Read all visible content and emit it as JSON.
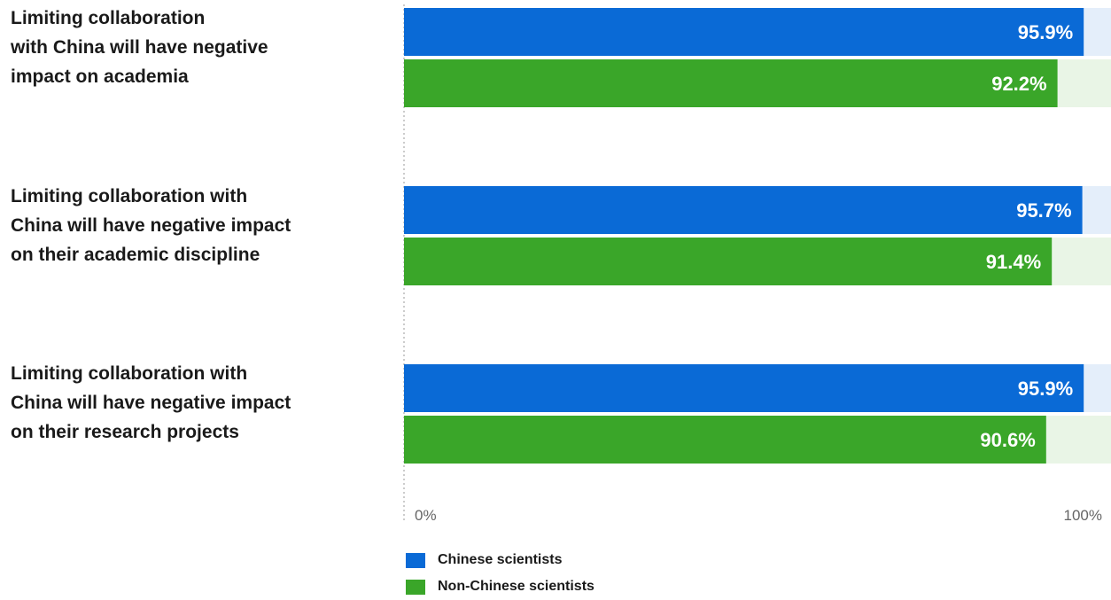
{
  "chart_data": {
    "type": "bar",
    "orientation": "horizontal",
    "categories": [
      "Limiting collaboration with China will have negative impact on academia",
      "Limiting collaboration with China will have negative impact on their academic discipline",
      "Limiting collaboration with China will have negative impact on their research projects"
    ],
    "category_lines": [
      [
        "Limiting collaboration",
        "with China will have negative",
        "impact on academia"
      ],
      [
        "Limiting collaboration with",
        "China will have negative impact",
        "on their academic discipline"
      ],
      [
        "Limiting collaboration with",
        "China will have negative impact",
        "on their research projects"
      ]
    ],
    "series": [
      {
        "name": "Chinese scientists",
        "values": [
          95.9,
          95.7,
          95.9
        ],
        "labels": [
          "95.9%",
          "95.7%",
          "95.9%"
        ],
        "color": "#0a6ad6",
        "track_color": "#e4eefa"
      },
      {
        "name": "Non-Chinese scientists",
        "values": [
          92.2,
          91.4,
          90.6
        ],
        "labels": [
          "92.2%",
          "91.4%",
          "90.6%"
        ],
        "color": "#3aa629",
        "track_color": "#e9f5e6"
      }
    ],
    "xlim": [
      0,
      100
    ],
    "ticks": [
      "0%",
      "100%"
    ],
    "legend": "bottom-left",
    "grid": false
  }
}
